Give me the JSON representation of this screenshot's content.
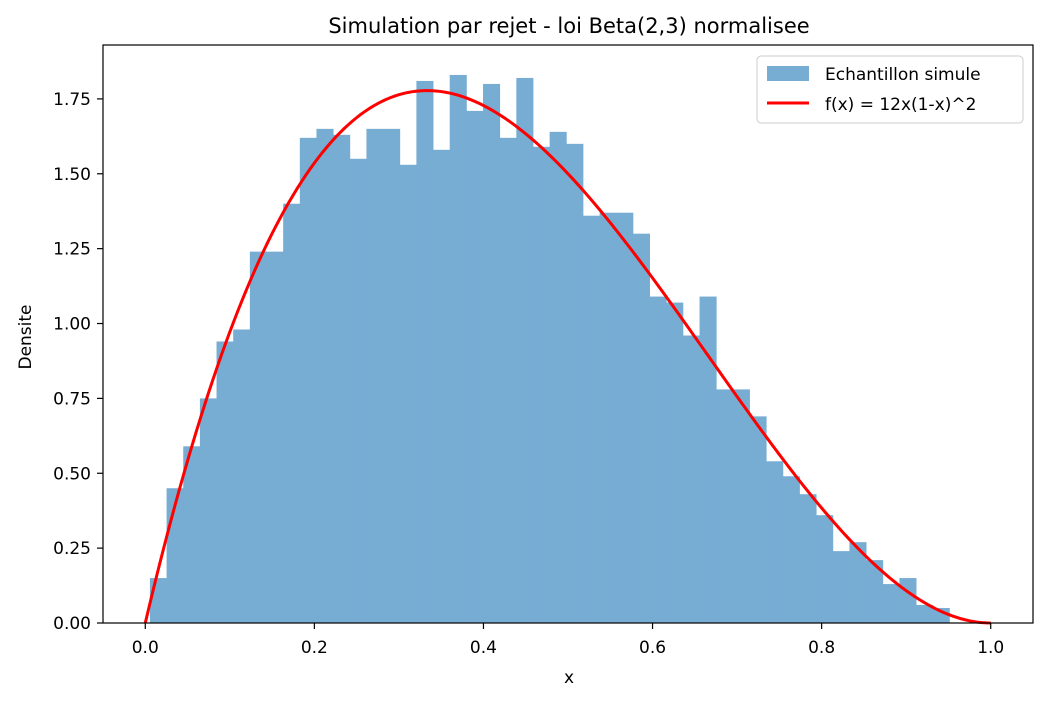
{
  "chart_data": {
    "type": "bar",
    "title": "Simulation par rejet - loi Beta(2,3) normalisee",
    "xlabel": "x",
    "ylabel": "Densite",
    "xlim": [
      -0.05,
      1.05
    ],
    "ylim": [
      0,
      1.93
    ],
    "xticks": [
      "0.0",
      "0.2",
      "0.4",
      "0.6",
      "0.8",
      "1.0"
    ],
    "yticks": [
      "0.00",
      "0.25",
      "0.50",
      "0.75",
      "1.00",
      "1.25",
      "1.50",
      "1.75"
    ],
    "grid": false,
    "legend_position": "top-right",
    "histogram": {
      "name": "Echantillon simule",
      "color": "#77acd3",
      "bin_start": 0.0055,
      "bin_width": 0.0197,
      "values": [
        0.15,
        0.45,
        0.59,
        0.75,
        0.94,
        0.98,
        1.24,
        1.24,
        1.4,
        1.62,
        1.65,
        1.63,
        1.55,
        1.65,
        1.65,
        1.53,
        1.81,
        1.58,
        1.83,
        1.71,
        1.8,
        1.62,
        1.82,
        1.59,
        1.64,
        1.6,
        1.36,
        1.37,
        1.37,
        1.3,
        1.09,
        1.07,
        0.96,
        1.09,
        0.78,
        0.78,
        0.69,
        0.54,
        0.49,
        0.43,
        0.36,
        0.24,
        0.27,
        0.21,
        0.13,
        0.15,
        0.06,
        0.05
      ]
    },
    "curve": {
      "name": "f(x) = 12x(1-x)^2",
      "color": "#ff0000",
      "x_range": [
        0,
        1
      ],
      "samples": 200
    }
  }
}
